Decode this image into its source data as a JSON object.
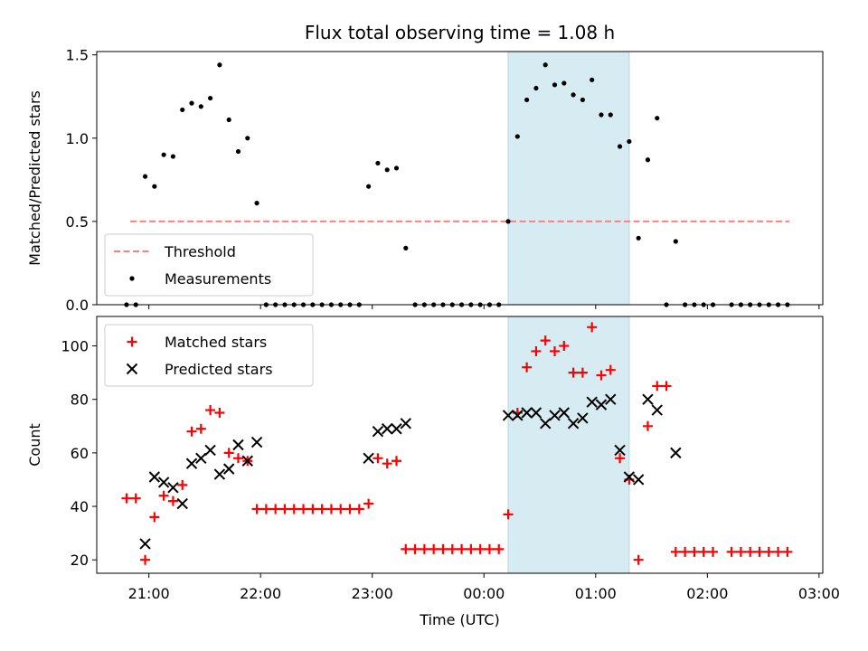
{
  "chart_data": [
    {
      "type": "scatter",
      "title": "Flux total observing time = 1.08 h",
      "ylabel": "Matched/Predicted stars",
      "xlabel": "",
      "xlim": [
        "20:32",
        "03:02"
      ],
      "ylim": [
        0,
        1.52
      ],
      "yticks": [
        "0.0",
        "0.5",
        "1.0",
        "1.5"
      ],
      "shaded_region": [
        "00:13",
        "01:18"
      ],
      "legend_position": "lower left",
      "series": [
        {
          "name": "Threshold",
          "kind": "dashed-line",
          "color": "#ff7f7f",
          "x": [
            "20:50",
            "02:44"
          ],
          "y": [
            0.5,
            0.5
          ]
        },
        {
          "name": "Measurements",
          "kind": "points",
          "color": "#000000",
          "points": [
            [
              "20:48",
              0.0
            ],
            [
              "20:53",
              0.0
            ],
            [
              "20:58",
              0.77
            ],
            [
              "21:03",
              0.71
            ],
            [
              "21:08",
              0.9
            ],
            [
              "21:13",
              0.89
            ],
            [
              "21:18",
              1.17
            ],
            [
              "21:23",
              1.21
            ],
            [
              "21:28",
              1.19
            ],
            [
              "21:33",
              1.24
            ],
            [
              "21:38",
              1.44
            ],
            [
              "21:43",
              1.11
            ],
            [
              "21:48",
              0.92
            ],
            [
              "21:53",
              1.0
            ],
            [
              "21:58",
              0.61
            ],
            [
              "22:03",
              0.0
            ],
            [
              "22:08",
              0.0
            ],
            [
              "22:13",
              0.0
            ],
            [
              "22:18",
              0.0
            ],
            [
              "22:23",
              0.0
            ],
            [
              "22:28",
              0.0
            ],
            [
              "22:33",
              0.0
            ],
            [
              "22:38",
              0.0
            ],
            [
              "22:43",
              0.0
            ],
            [
              "22:48",
              0.0
            ],
            [
              "22:53",
              0.0
            ],
            [
              "22:58",
              0.71
            ],
            [
              "23:03",
              0.85
            ],
            [
              "23:08",
              0.81
            ],
            [
              "23:13",
              0.82
            ],
            [
              "23:18",
              0.34
            ],
            [
              "23:23",
              0.0
            ],
            [
              "23:28",
              0.0
            ],
            [
              "23:33",
              0.0
            ],
            [
              "23:38",
              0.0
            ],
            [
              "23:43",
              0.0
            ],
            [
              "23:48",
              0.0
            ],
            [
              "23:53",
              0.0
            ],
            [
              "23:58",
              0.0
            ],
            [
              "00:03",
              0.0
            ],
            [
              "00:08",
              0.0
            ],
            [
              "00:13",
              0.5
            ],
            [
              "00:18",
              1.01
            ],
            [
              "00:23",
              1.23
            ],
            [
              "00:28",
              1.3
            ],
            [
              "00:33",
              1.44
            ],
            [
              "00:38",
              1.32
            ],
            [
              "00:43",
              1.33
            ],
            [
              "00:48",
              1.26
            ],
            [
              "00:53",
              1.23
            ],
            [
              "00:58",
              1.35
            ],
            [
              "01:03",
              1.14
            ],
            [
              "01:08",
              1.14
            ],
            [
              "01:13",
              0.95
            ],
            [
              "01:18",
              0.98
            ],
            [
              "01:23",
              0.4
            ],
            [
              "01:28",
              0.87
            ],
            [
              "01:33",
              1.12
            ],
            [
              "01:38",
              0.0
            ],
            [
              "01:43",
              0.38
            ],
            [
              "01:48",
              0.0
            ],
            [
              "01:53",
              0.0
            ],
            [
              "01:58",
              0.0
            ],
            [
              "02:03",
              0.0
            ],
            [
              "02:13",
              0.0
            ],
            [
              "02:18",
              0.0
            ],
            [
              "02:23",
              0.0
            ],
            [
              "02:28",
              0.0
            ],
            [
              "02:33",
              0.0
            ],
            [
              "02:38",
              0.0
            ],
            [
              "02:43",
              0.0
            ]
          ]
        }
      ]
    },
    {
      "type": "scatter",
      "title": "",
      "ylabel": "Count",
      "xlabel": "Time (UTC)",
      "xlim": [
        "20:32",
        "03:02"
      ],
      "ylim": [
        15,
        111
      ],
      "yticks": [
        "20",
        "40",
        "60",
        "80",
        "100"
      ],
      "xticks": [
        "21:00",
        "22:00",
        "23:00",
        "00:00",
        "01:00",
        "02:00",
        "03:00"
      ],
      "shaded_region": [
        "00:13",
        "01:18"
      ],
      "legend_position": "upper left",
      "series": [
        {
          "name": "Matched stars",
          "marker": "+",
          "color": "#ff0000",
          "points": [
            [
              "20:48",
              43
            ],
            [
              "20:53",
              43
            ],
            [
              "20:58",
              20
            ],
            [
              "21:03",
              36
            ],
            [
              "21:08",
              44
            ],
            [
              "21:13",
              42
            ],
            [
              "21:18",
              48
            ],
            [
              "21:23",
              68
            ],
            [
              "21:28",
              69
            ],
            [
              "21:33",
              76
            ],
            [
              "21:38",
              75
            ],
            [
              "21:43",
              60
            ],
            [
              "21:48",
              58
            ],
            [
              "21:53",
              57
            ],
            [
              "21:58",
              39
            ],
            [
              "22:03",
              39
            ],
            [
              "22:08",
              39
            ],
            [
              "22:13",
              39
            ],
            [
              "22:18",
              39
            ],
            [
              "22:23",
              39
            ],
            [
              "22:28",
              39
            ],
            [
              "22:33",
              39
            ],
            [
              "22:38",
              39
            ],
            [
              "22:43",
              39
            ],
            [
              "22:48",
              39
            ],
            [
              "22:53",
              39
            ],
            [
              "22:58",
              41
            ],
            [
              "23:03",
              58
            ],
            [
              "23:08",
              56
            ],
            [
              "23:13",
              57
            ],
            [
              "23:18",
              24
            ],
            [
              "23:23",
              24
            ],
            [
              "23:28",
              24
            ],
            [
              "23:33",
              24
            ],
            [
              "23:38",
              24
            ],
            [
              "23:43",
              24
            ],
            [
              "23:48",
              24
            ],
            [
              "23:53",
              24
            ],
            [
              "23:58",
              24
            ],
            [
              "00:03",
              24
            ],
            [
              "00:08",
              24
            ],
            [
              "00:13",
              37
            ],
            [
              "00:18",
              75
            ],
            [
              "00:23",
              92
            ],
            [
              "00:28",
              98
            ],
            [
              "00:33",
              102
            ],
            [
              "00:38",
              98
            ],
            [
              "00:43",
              100
            ],
            [
              "00:48",
              90
            ],
            [
              "00:53",
              90
            ],
            [
              "00:58",
              107
            ],
            [
              "01:03",
              89
            ],
            [
              "01:08",
              91
            ],
            [
              "01:13",
              58
            ],
            [
              "01:18",
              50
            ],
            [
              "01:23",
              20
            ],
            [
              "01:28",
              70
            ],
            [
              "01:33",
              85
            ],
            [
              "01:38",
              85
            ],
            [
              "01:43",
              23
            ],
            [
              "01:48",
              23
            ],
            [
              "01:53",
              23
            ],
            [
              "01:58",
              23
            ],
            [
              "02:03",
              23
            ],
            [
              "02:13",
              23
            ],
            [
              "02:18",
              23
            ],
            [
              "02:23",
              23
            ],
            [
              "02:28",
              23
            ],
            [
              "02:33",
              23
            ],
            [
              "02:38",
              23
            ],
            [
              "02:43",
              23
            ]
          ]
        },
        {
          "name": "Predicted stars",
          "marker": "x",
          "color": "#000000",
          "points": [
            [
              "20:58",
              26
            ],
            [
              "21:03",
              51
            ],
            [
              "21:08",
              49
            ],
            [
              "21:13",
              47
            ],
            [
              "21:18",
              41
            ],
            [
              "21:23",
              56
            ],
            [
              "21:28",
              58
            ],
            [
              "21:33",
              61
            ],
            [
              "21:38",
              52
            ],
            [
              "21:43",
              54
            ],
            [
              "21:48",
              63
            ],
            [
              "21:53",
              57
            ],
            [
              "21:58",
              64
            ],
            [
              "22:58",
              58
            ],
            [
              "23:03",
              68
            ],
            [
              "23:08",
              69
            ],
            [
              "23:13",
              69
            ],
            [
              "23:18",
              71
            ],
            [
              "00:13",
              74
            ],
            [
              "00:18",
              74
            ],
            [
              "00:23",
              75
            ],
            [
              "00:28",
              75
            ],
            [
              "00:33",
              71
            ],
            [
              "00:38",
              74
            ],
            [
              "00:43",
              75
            ],
            [
              "00:48",
              71
            ],
            [
              "00:53",
              73
            ],
            [
              "00:58",
              79
            ],
            [
              "01:03",
              78
            ],
            [
              "01:08",
              80
            ],
            [
              "01:13",
              61
            ],
            [
              "01:18",
              51
            ],
            [
              "01:23",
              50
            ],
            [
              "01:28",
              80
            ],
            [
              "01:33",
              76
            ],
            [
              "01:43",
              60
            ]
          ]
        }
      ]
    }
  ]
}
